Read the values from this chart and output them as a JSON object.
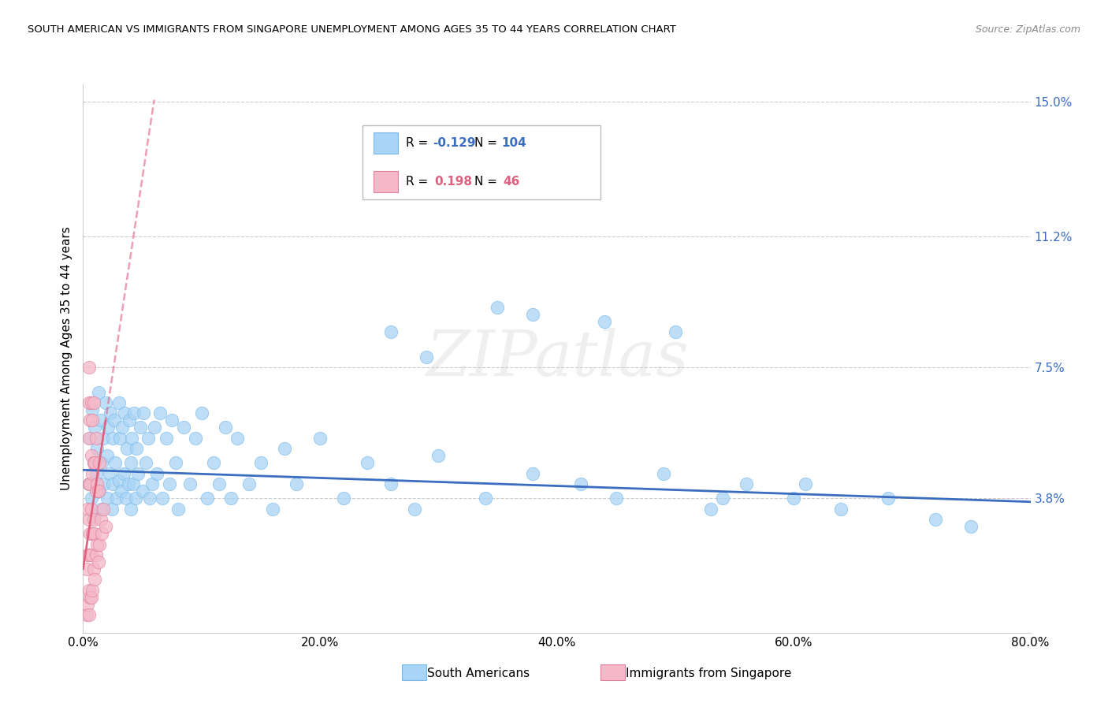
{
  "title": "SOUTH AMERICAN VS IMMIGRANTS FROM SINGAPORE UNEMPLOYMENT AMONG AGES 35 TO 44 YEARS CORRELATION CHART",
  "source": "Source: ZipAtlas.com",
  "ylabel": "Unemployment Among Ages 35 to 44 years",
  "xlim": [
    0.0,
    0.8
  ],
  "ylim": [
    0.0,
    0.155
  ],
  "xtick_labels": [
    "0.0%",
    "20.0%",
    "40.0%",
    "60.0%",
    "80.0%"
  ],
  "xtick_values": [
    0.0,
    0.2,
    0.4,
    0.6,
    0.8
  ],
  "ytick_right_labels": [
    "3.8%",
    "7.5%",
    "11.2%",
    "15.0%"
  ],
  "ytick_right_values": [
    0.038,
    0.075,
    0.112,
    0.15
  ],
  "r_blue": "-0.129",
  "n_blue": "104",
  "r_pink": "0.198",
  "n_pink": "46",
  "label_blue": "South Americans",
  "label_pink": "Immigrants from Singapore",
  "watermark": "ZIPatlas",
  "dot_blue_face": "#A8D4F5",
  "dot_blue_edge": "#7ABAEC",
  "line_blue": "#3A6DBF",
  "dot_pink_face": "#F5B8C8",
  "dot_pink_edge": "#E080A0",
  "line_pink": "#E06080",
  "grid_color": "#CCCCCC",
  "sa_x": [
    0.005,
    0.006,
    0.007,
    0.008,
    0.009,
    0.01,
    0.01,
    0.011,
    0.012,
    0.013,
    0.014,
    0.015,
    0.015,
    0.016,
    0.017,
    0.018,
    0.019,
    0.02,
    0.02,
    0.021,
    0.022,
    0.023,
    0.024,
    0.025,
    0.025,
    0.026,
    0.027,
    0.028,
    0.03,
    0.03,
    0.031,
    0.032,
    0.033,
    0.034,
    0.035,
    0.036,
    0.037,
    0.038,
    0.039,
    0.04,
    0.04,
    0.041,
    0.042,
    0.043,
    0.044,
    0.045,
    0.046,
    0.048,
    0.05,
    0.051,
    0.053,
    0.055,
    0.056,
    0.058,
    0.06,
    0.062,
    0.065,
    0.067,
    0.07,
    0.073,
    0.075,
    0.078,
    0.08,
    0.085,
    0.09,
    0.095,
    0.1,
    0.105,
    0.11,
    0.115,
    0.12,
    0.125,
    0.13,
    0.14,
    0.15,
    0.16,
    0.17,
    0.18,
    0.2,
    0.22,
    0.24,
    0.26,
    0.28,
    0.3,
    0.34,
    0.38,
    0.42,
    0.45,
    0.49,
    0.53,
    0.56,
    0.6,
    0.64,
    0.68,
    0.72,
    0.75,
    0.38,
    0.5,
    0.29,
    0.26,
    0.35,
    0.44,
    0.54,
    0.61
  ],
  "sa_y": [
    0.042,
    0.055,
    0.038,
    0.063,
    0.048,
    0.058,
    0.033,
    0.045,
    0.052,
    0.068,
    0.04,
    0.06,
    0.035,
    0.048,
    0.055,
    0.042,
    0.065,
    0.05,
    0.038,
    0.058,
    0.045,
    0.062,
    0.035,
    0.055,
    0.042,
    0.06,
    0.048,
    0.038,
    0.065,
    0.043,
    0.055,
    0.04,
    0.058,
    0.045,
    0.062,
    0.038,
    0.052,
    0.042,
    0.06,
    0.048,
    0.035,
    0.055,
    0.042,
    0.062,
    0.038,
    0.052,
    0.045,
    0.058,
    0.04,
    0.062,
    0.048,
    0.055,
    0.038,
    0.042,
    0.058,
    0.045,
    0.062,
    0.038,
    0.055,
    0.042,
    0.06,
    0.048,
    0.035,
    0.058,
    0.042,
    0.055,
    0.062,
    0.038,
    0.048,
    0.042,
    0.058,
    0.038,
    0.055,
    0.042,
    0.048,
    0.035,
    0.052,
    0.042,
    0.055,
    0.038,
    0.048,
    0.042,
    0.035,
    0.05,
    0.038,
    0.045,
    0.042,
    0.038,
    0.045,
    0.035,
    0.042,
    0.038,
    0.035,
    0.038,
    0.032,
    0.03,
    0.09,
    0.085,
    0.078,
    0.085,
    0.092,
    0.088,
    0.038,
    0.042
  ],
  "sg_x": [
    0.003,
    0.003,
    0.004,
    0.004,
    0.004,
    0.005,
    0.005,
    0.005,
    0.005,
    0.005,
    0.005,
    0.005,
    0.005,
    0.006,
    0.006,
    0.006,
    0.006,
    0.007,
    0.007,
    0.007,
    0.007,
    0.007,
    0.008,
    0.008,
    0.008,
    0.008,
    0.009,
    0.009,
    0.009,
    0.009,
    0.01,
    0.01,
    0.01,
    0.011,
    0.011,
    0.011,
    0.012,
    0.012,
    0.013,
    0.013,
    0.014,
    0.014,
    0.015,
    0.016,
    0.017,
    0.019
  ],
  "sg_y": [
    0.005,
    0.018,
    0.008,
    0.022,
    0.035,
    0.005,
    0.012,
    0.022,
    0.032,
    0.042,
    0.055,
    0.065,
    0.075,
    0.01,
    0.028,
    0.042,
    0.06,
    0.01,
    0.022,
    0.035,
    0.05,
    0.065,
    0.012,
    0.028,
    0.045,
    0.06,
    0.018,
    0.032,
    0.048,
    0.065,
    0.015,
    0.028,
    0.048,
    0.022,
    0.04,
    0.055,
    0.025,
    0.042,
    0.02,
    0.04,
    0.025,
    0.048,
    0.032,
    0.028,
    0.035,
    0.03
  ],
  "blue_trend_x0": 0.0,
  "blue_trend_x1": 0.8,
  "blue_trend_y0": 0.046,
  "blue_trend_y1": 0.037,
  "pink_trend_x0": 0.0,
  "pink_trend_x1": 0.019,
  "pink_trend_y0": 0.018,
  "pink_trend_y1": 0.06
}
